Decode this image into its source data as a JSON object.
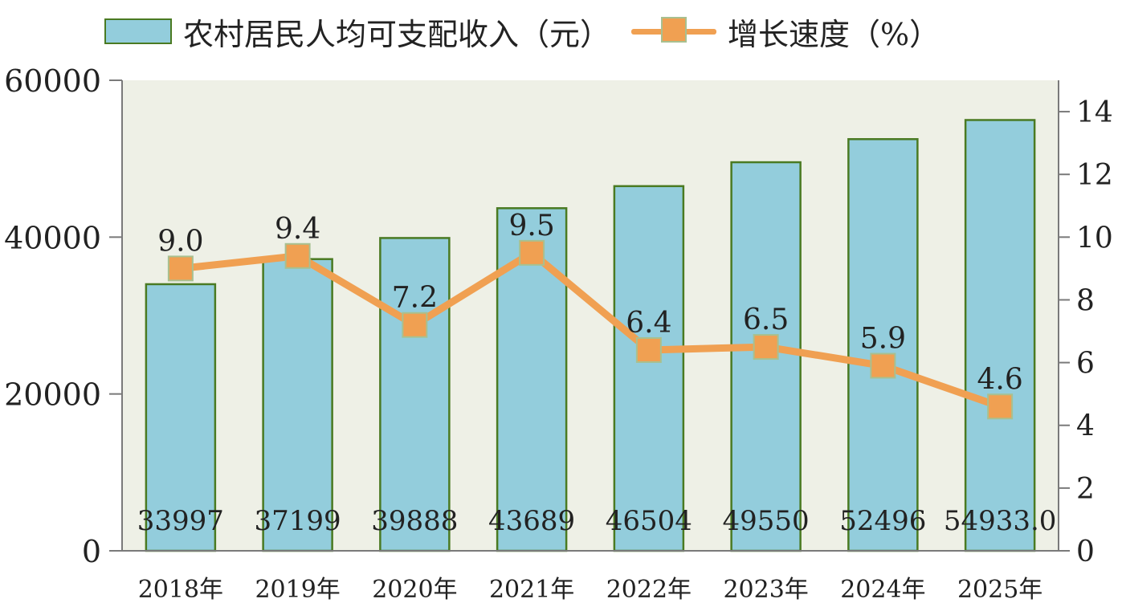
{
  "legend": {
    "bar_label": "农村居民人均可支配收入（元）",
    "line_label": "增长速度（%）"
  },
  "colors": {
    "bar_fill": "#93cddc",
    "bar_stroke": "#4a7a22",
    "line": "#f0a052",
    "marker_stroke": "#a8c090",
    "plot_background": "#eef0e6",
    "axis": "#7a7a7a"
  },
  "chart_data": {
    "type": "bar",
    "categories": [
      "2018年",
      "2019年",
      "2020年",
      "2021年",
      "2022年",
      "2023年",
      "2024年",
      "2025年"
    ],
    "series": [
      {
        "name": "农村居民人均可支配收入（元）",
        "type": "bar",
        "axis": "left",
        "values": [
          33997,
          37199,
          39888,
          43689,
          46504,
          49550,
          52496,
          54933.0
        ],
        "labels": [
          "33997",
          "37199",
          "39888",
          "43689",
          "46504",
          "49550",
          "52496",
          "54933.0"
        ]
      },
      {
        "name": "增长速度（%）",
        "type": "line",
        "axis": "right",
        "values": [
          9.0,
          9.4,
          7.2,
          9.5,
          6.4,
          6.5,
          5.9,
          4.6
        ],
        "labels": [
          "9.0",
          "9.4",
          "7.2",
          "9.5",
          "6.4",
          "6.5",
          "5.9",
          "4.6"
        ]
      }
    ],
    "y_left": {
      "ylim": [
        0,
        60000
      ],
      "ticks": [
        "0",
        "20000",
        "40000",
        "60000"
      ]
    },
    "y_right": {
      "ylim": [
        0,
        15
      ],
      "ticks": [
        "0",
        "2",
        "4",
        "6",
        "8",
        "10",
        "12",
        "14"
      ]
    },
    "grid": false,
    "legend_position": "top"
  }
}
